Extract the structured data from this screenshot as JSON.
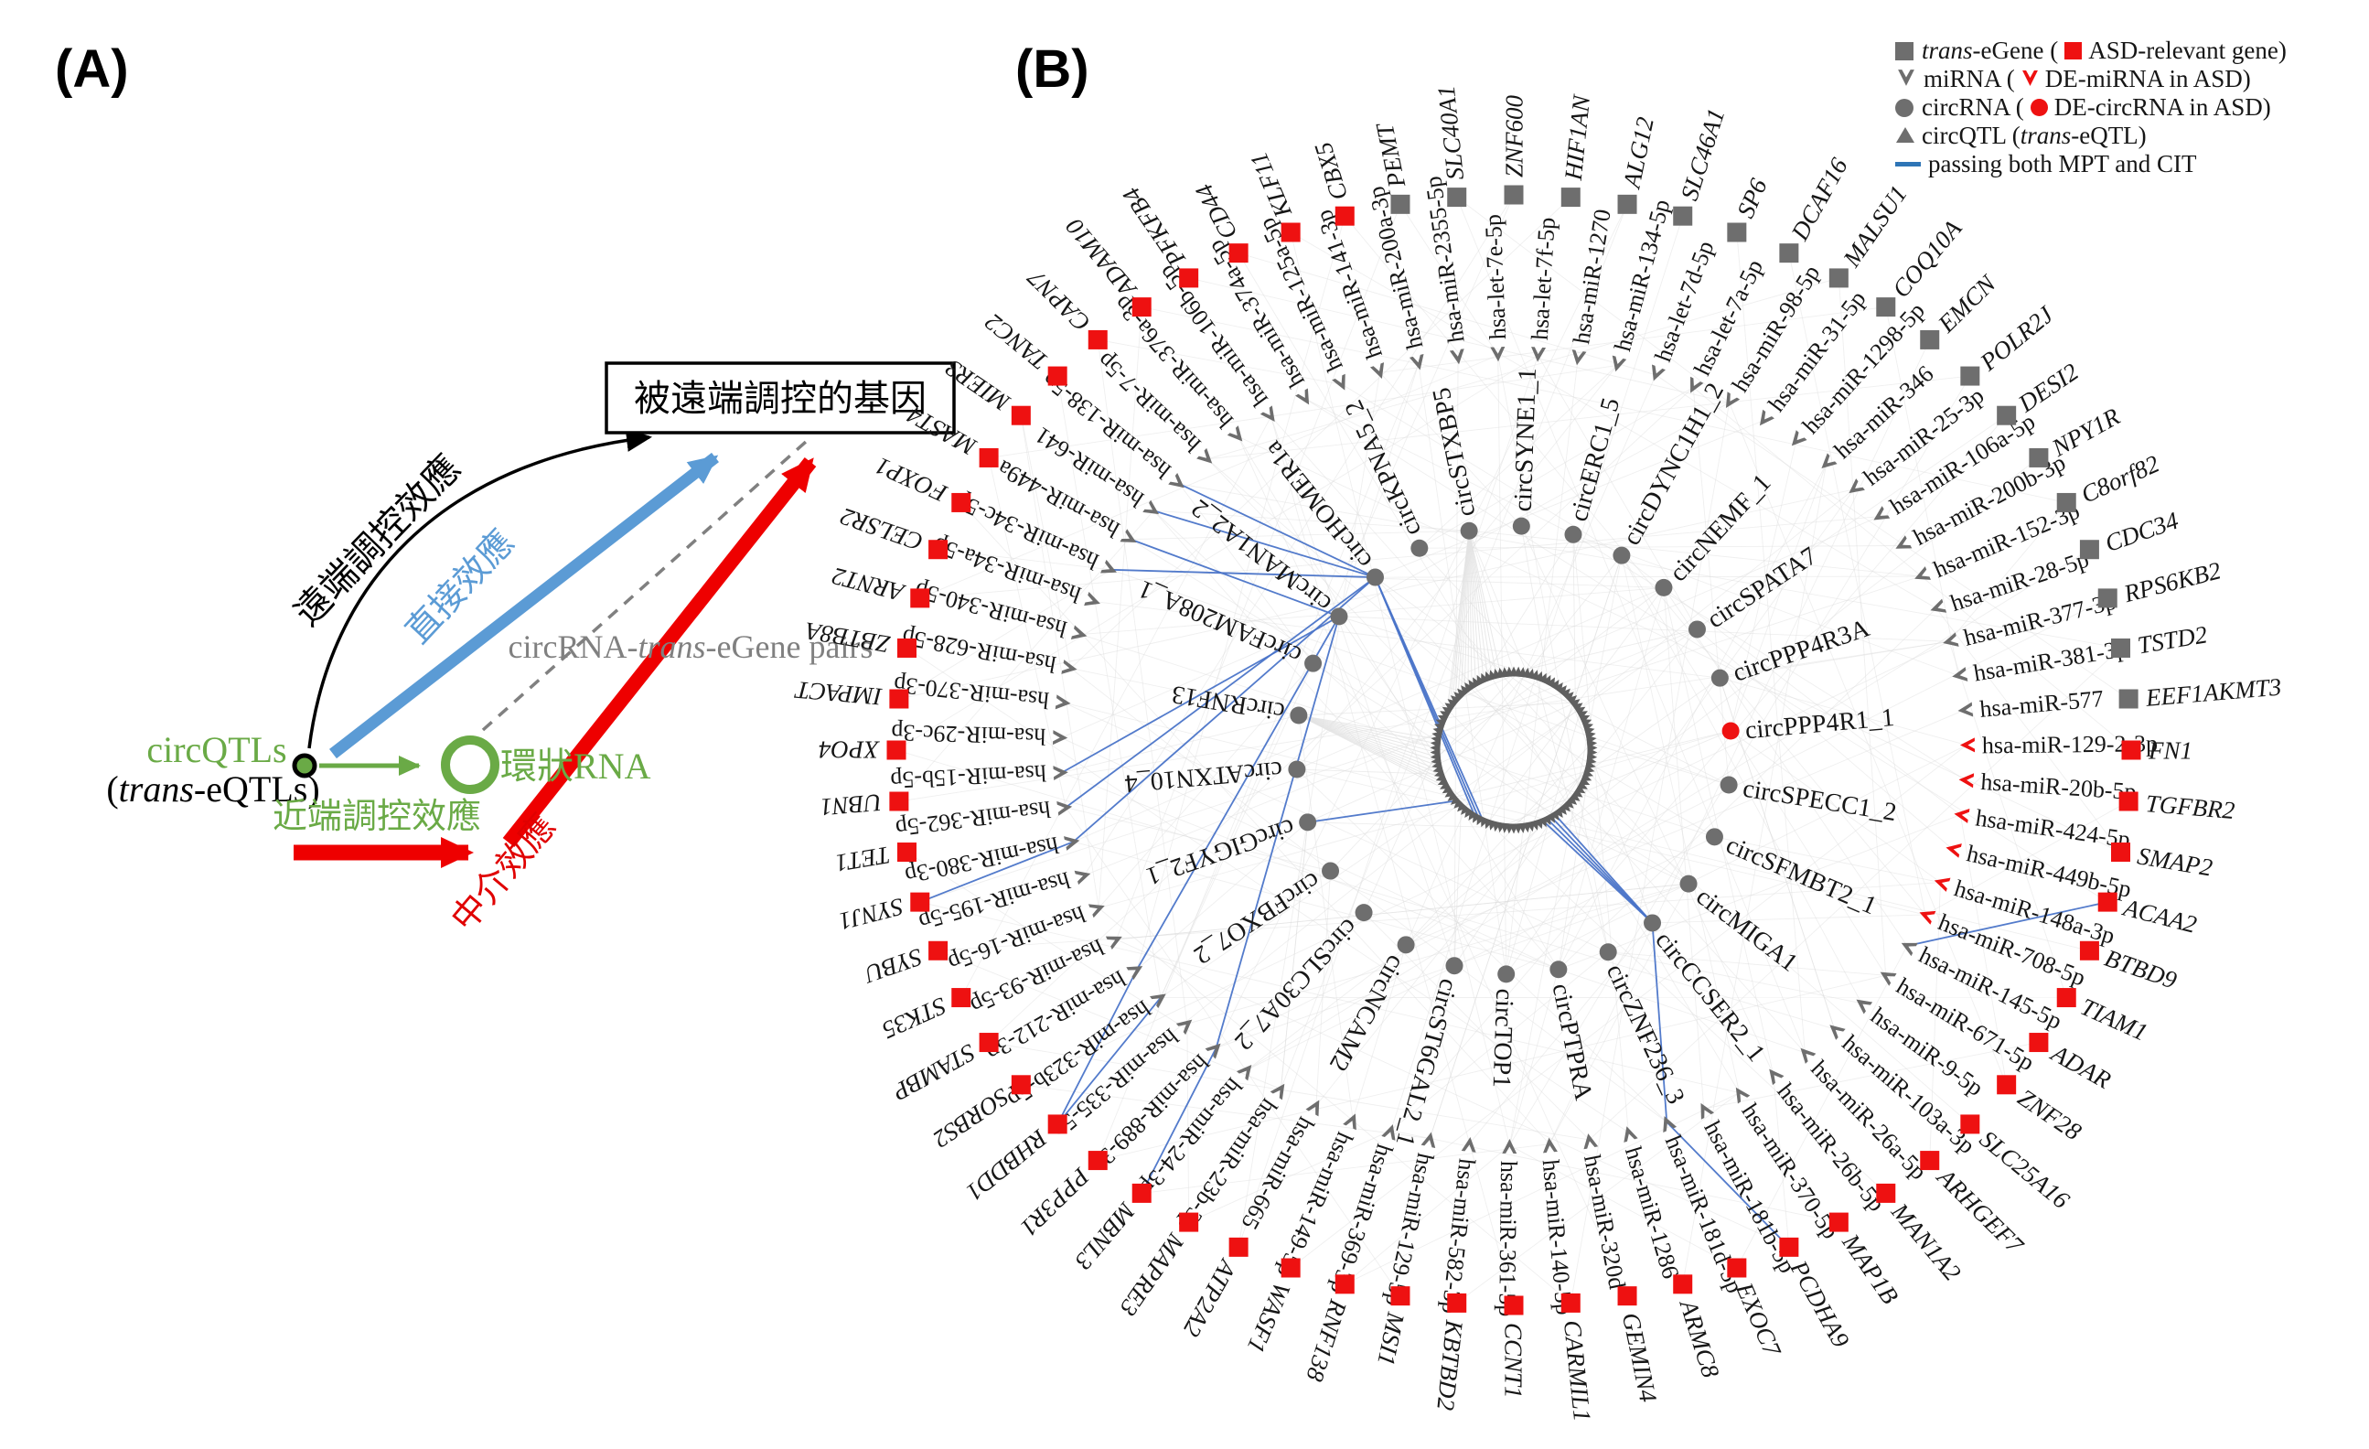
{
  "colors": {
    "green": "#6aaa46",
    "blue": "#5b9bd5",
    "red": "#ee0000",
    "red_text": "#e00000",
    "gray_marker": "#6e6e6e",
    "red_marker": "#ee1111",
    "edge_blue": "#4a74c9",
    "legend_blue": "#2e75b6",
    "gray_line": "#808080",
    "light_edge": "#dcdcdc"
  },
  "panelA": {
    "label": "(A)",
    "box_title": "被遠端調控的基因",
    "labels": {
      "distal": "遠端調控效應",
      "direct": "直接效應",
      "pairs_pre": "circRNA-",
      "pairs_italic": "trans",
      "pairs_post": "-eGene pairs",
      "circqtls": "circQTLs",
      "trans_pre": "(",
      "trans_italic": "trans",
      "trans_post": "-eQTLs)",
      "proximal": "近端調控效應",
      "mediation": "中介效應",
      "circrna": "環狀RNA"
    }
  },
  "panelB": {
    "label": "(B)",
    "legend": {
      "r1": {
        "pre_italic": "trans",
        "pre": "-eGene (",
        "post": "ASD-relevant gene)"
      },
      "r2": {
        "pre": "miRNA (",
        "post": "DE-miRNA in ASD)"
      },
      "r3": {
        "pre": "circRNA (",
        "post": "DE-circRNA in ASD)"
      },
      "r4": {
        "pre": "circQTL (",
        "italic": "trans",
        "post": "-eQTL)"
      },
      "r5": {
        "text": "passing both MPT and CIT"
      }
    },
    "network": {
      "qtl_count": 110,
      "genes": [
        {
          "name": "PEMT",
          "asd": false
        },
        {
          "name": "SLC40A1",
          "asd": false
        },
        {
          "name": "ZNF600",
          "asd": false
        },
        {
          "name": "HIF1AN",
          "asd": false
        },
        {
          "name": "ALG12",
          "asd": false
        },
        {
          "name": "SLC46A1",
          "asd": false
        },
        {
          "name": "SP6",
          "asd": false
        },
        {
          "name": "DCAF16",
          "asd": false
        },
        {
          "name": "MALSU1",
          "asd": false
        },
        {
          "name": "COQ10A",
          "asd": false
        },
        {
          "name": "EMCN",
          "asd": false
        },
        {
          "name": "POLR2J",
          "asd": false
        },
        {
          "name": "DESI2",
          "asd": false
        },
        {
          "name": "NPY1R",
          "asd": false
        },
        {
          "name": "C8orf82",
          "asd": false
        },
        {
          "name": "CDC34",
          "asd": false
        },
        {
          "name": "RPS6KB2",
          "asd": false
        },
        {
          "name": "TSTD2",
          "asd": false
        },
        {
          "name": "EEF1AKMT3",
          "asd": false
        },
        {
          "name": "FN1",
          "asd": true
        },
        {
          "name": "TGFBR2",
          "asd": true
        },
        {
          "name": "SMAP2",
          "asd": true
        },
        {
          "name": "ACAA2",
          "asd": true
        },
        {
          "name": "BTBD9",
          "asd": true
        },
        {
          "name": "TIAM1",
          "asd": true
        },
        {
          "name": "ADAR",
          "asd": true
        },
        {
          "name": "ZNF28",
          "asd": true
        },
        {
          "name": "SLC25A16",
          "asd": true
        },
        {
          "name": "ARHGEF7",
          "asd": true
        },
        {
          "name": "MAN1A2",
          "asd": true
        },
        {
          "name": "MAP1B",
          "asd": true
        },
        {
          "name": "PCDHA9",
          "asd": true
        },
        {
          "name": "EXOC7",
          "asd": true
        },
        {
          "name": "ARMC8",
          "asd": true
        },
        {
          "name": "GEMIN4",
          "asd": true
        },
        {
          "name": "CARMIL1",
          "asd": true
        },
        {
          "name": "CCNT1",
          "asd": true
        },
        {
          "name": "KBTBD2",
          "asd": true
        },
        {
          "name": "MSI1",
          "asd": true
        },
        {
          "name": "RNF138",
          "asd": true
        },
        {
          "name": "WASF1",
          "asd": true
        },
        {
          "name": "ATP2A2",
          "asd": true
        },
        {
          "name": "MAPRE3",
          "asd": true
        },
        {
          "name": "MBNL3",
          "asd": true
        },
        {
          "name": "PPP3R1",
          "asd": true
        },
        {
          "name": "RHBDD1",
          "asd": true
        },
        {
          "name": "SORBS2",
          "asd": true
        },
        {
          "name": "STAMBP",
          "asd": true
        },
        {
          "name": "STK35",
          "asd": true
        },
        {
          "name": "SYBU",
          "asd": true
        },
        {
          "name": "SYNJ1",
          "asd": true
        },
        {
          "name": "TET1",
          "asd": true
        },
        {
          "name": "UBN1",
          "asd": true
        },
        {
          "name": "XPO4",
          "asd": true
        },
        {
          "name": "IMPACT",
          "asd": true
        },
        {
          "name": "ZBTB8A",
          "asd": true
        },
        {
          "name": "ARNT2",
          "asd": true
        },
        {
          "name": "CELSR2",
          "asd": true
        },
        {
          "name": "FOXP1",
          "asd": true
        },
        {
          "name": "MAST4",
          "asd": true
        },
        {
          "name": "MIER3",
          "asd": true
        },
        {
          "name": "TANC2",
          "asd": true
        },
        {
          "name": "CAPN7",
          "asd": true
        },
        {
          "name": "ADAM10",
          "asd": true
        },
        {
          "name": "PFKFB4",
          "asd": true
        },
        {
          "name": "CD44",
          "asd": true
        },
        {
          "name": "KLF11",
          "asd": true
        },
        {
          "name": "CBX5",
          "asd": true
        }
      ],
      "mirnas": [
        {
          "name": "hsa-let-7e-5p",
          "de": false
        },
        {
          "name": "hsa-let-7f-5p",
          "de": false
        },
        {
          "name": "hsa-miR-1270",
          "de": false
        },
        {
          "name": "hsa-miR-134-5p",
          "de": false
        },
        {
          "name": "hsa-let-7d-5p",
          "de": false
        },
        {
          "name": "hsa-let-7a-5p",
          "de": false
        },
        {
          "name": "hsa-miR-98-5p",
          "de": false
        },
        {
          "name": "hsa-miR-31-5p",
          "de": false
        },
        {
          "name": "hsa-miR-1298-5p",
          "de": false
        },
        {
          "name": "hsa-miR-346",
          "de": false
        },
        {
          "name": "hsa-miR-25-3p",
          "de": false
        },
        {
          "name": "hsa-miR-106a-5p",
          "de": false
        },
        {
          "name": "hsa-miR-200b-3p",
          "de": false
        },
        {
          "name": "hsa-miR-152-3p",
          "de": false
        },
        {
          "name": "hsa-miR-28-5p",
          "de": false
        },
        {
          "name": "hsa-miR-377-3p",
          "de": false
        },
        {
          "name": "hsa-miR-381-3p",
          "de": false
        },
        {
          "name": "hsa-miR-577",
          "de": false
        },
        {
          "name": "hsa-miR-129-2-3p",
          "de": true
        },
        {
          "name": "hsa-miR-20b-5p",
          "de": true
        },
        {
          "name": "hsa-miR-424-5p",
          "de": true
        },
        {
          "name": "hsa-miR-449b-5p",
          "de": true
        },
        {
          "name": "hsa-miR-148a-3p",
          "de": true
        },
        {
          "name": "hsa-miR-708-5p",
          "de": true
        },
        {
          "name": "hsa-miR-145-5p",
          "de": false
        },
        {
          "name": "hsa-miR-671-5p",
          "de": false
        },
        {
          "name": "hsa-miR-9-5p",
          "de": false
        },
        {
          "name": "hsa-miR-103a-3p",
          "de": false
        },
        {
          "name": "hsa-miR-26a-5p",
          "de": false
        },
        {
          "name": "hsa-miR-26b-5p",
          "de": false
        },
        {
          "name": "hsa-miR-370-5p",
          "de": false
        },
        {
          "name": "hsa-miR-181b-5p",
          "de": false
        },
        {
          "name": "hsa-miR-181d-5p",
          "de": false
        },
        {
          "name": "hsa-miR-1286",
          "de": false
        },
        {
          "name": "hsa-miR-320d",
          "de": false
        },
        {
          "name": "hsa-miR-140-5p",
          "de": false
        },
        {
          "name": "hsa-miR-361-5p",
          "de": false
        },
        {
          "name": "hsa-miR-582-3p",
          "de": false
        },
        {
          "name": "hsa-miR-129-5p",
          "de": false
        },
        {
          "name": "hsa-miR-369-3p",
          "de": false
        },
        {
          "name": "hsa-miR-149-5p",
          "de": false
        },
        {
          "name": "hsa-miR-665",
          "de": false
        },
        {
          "name": "hsa-miR-23b-3p",
          "de": false
        },
        {
          "name": "hsa-miR-24-3p",
          "de": false
        },
        {
          "name": "hsa-miR-889-3p",
          "de": false
        },
        {
          "name": "hsa-miR-335-5p",
          "de": false
        },
        {
          "name": "hsa-miR-323b-5p",
          "de": false
        },
        {
          "name": "hsa-miR-212-3p",
          "de": false
        },
        {
          "name": "hsa-miR-93-5p",
          "de": false
        },
        {
          "name": "hsa-miR-16-5p",
          "de": false
        },
        {
          "name": "hsa-miR-195-5p",
          "de": false
        },
        {
          "name": "hsa-miR-380-3p",
          "de": false
        },
        {
          "name": "hsa-miR-362-5p",
          "de": false
        },
        {
          "name": "hsa-miR-15b-5p",
          "de": false
        },
        {
          "name": "hsa-miR-29c-3p",
          "de": false
        },
        {
          "name": "hsa-miR-370-3p",
          "de": false
        },
        {
          "name": "hsa-miR-628-5p",
          "de": false
        },
        {
          "name": "hsa-miR-340-5p",
          "de": false
        },
        {
          "name": "hsa-miR-34a-5p",
          "de": false
        },
        {
          "name": "hsa-miR-34c-5p",
          "de": false
        },
        {
          "name": "hsa-miR-449a",
          "de": false
        },
        {
          "name": "hsa-miR-641",
          "de": false
        },
        {
          "name": "hsa-miR-138-5p",
          "de": false
        },
        {
          "name": "hsa-miR-7-5p",
          "de": false
        },
        {
          "name": "hsa-miR-376a-3p",
          "de": false
        },
        {
          "name": "hsa-miR-106b-5p",
          "de": false
        },
        {
          "name": "hsa-miR-374a-5p",
          "de": false
        },
        {
          "name": "hsa-miR-125a-5p",
          "de": false
        },
        {
          "name": "hsa-miR-141-3p",
          "de": false
        },
        {
          "name": "hsa-miR-200a-3p",
          "de": false
        },
        {
          "name": "hsa-miR-2355-5p",
          "de": false
        }
      ],
      "circrnas": [
        {
          "name": "circSYNE1_1",
          "de": false
        },
        {
          "name": "circERC1_5",
          "de": false
        },
        {
          "name": "circDYNC1H1_2",
          "de": false
        },
        {
          "name": "circNEMF_1",
          "de": false
        },
        {
          "name": "circSPATA7",
          "de": false
        },
        {
          "name": "circPPP4R3A",
          "de": false
        },
        {
          "name": "circPPP4R1_1",
          "de": true
        },
        {
          "name": "circSPECC1_2",
          "de": false
        },
        {
          "name": "circSFMBT2_1",
          "de": false
        },
        {
          "name": "circMIGA1",
          "de": false
        },
        {
          "name": "circCCSER2_1",
          "de": false
        },
        {
          "name": "circZNF236_3",
          "de": false
        },
        {
          "name": "circPTPRA",
          "de": false
        },
        {
          "name": "circTOP1",
          "de": false
        },
        {
          "name": "circST6GAL2_1",
          "de": false
        },
        {
          "name": "circNCAM2",
          "de": false
        },
        {
          "name": "circSLC30A7_2",
          "de": false
        },
        {
          "name": "circFBXO7_2",
          "de": false
        },
        {
          "name": "circGIGYF2_1",
          "de": false
        },
        {
          "name": "circATXN10_4",
          "de": false
        },
        {
          "name": "circRNF13",
          "de": false
        },
        {
          "name": "circFAM208A_1",
          "de": false
        },
        {
          "name": "circMAN1A2_2",
          "de": false
        },
        {
          "name": "circHOMER1a",
          "de": false
        },
        {
          "name": "circKPNA5_2",
          "de": false
        },
        {
          "name": "circSTXBP5",
          "de": false
        }
      ],
      "blue_edges": [
        [
          "q:62",
          "c:circHOMER1a"
        ],
        [
          "q:63",
          "c:circHOMER1a"
        ],
        [
          "q:64",
          "c:circHOMER1a"
        ],
        [
          "q:45",
          "c:circCCSER2_1"
        ],
        [
          "q:46",
          "c:circCCSER2_1"
        ],
        [
          "q:47",
          "c:circCCSER2_1"
        ],
        [
          "q:48",
          "c:circCCSER2_1"
        ],
        [
          "q:70",
          "c:circGIGYF2_1"
        ],
        [
          "c:circHOMER1a",
          "m:hsa-miR-641"
        ],
        [
          "c:circHOMER1a",
          "m:hsa-miR-138-5p"
        ],
        [
          "c:circHOMER1a",
          "m:hsa-miR-34c-5p"
        ],
        [
          "c:circHOMER1a",
          "m:hsa-miR-380-3p"
        ],
        [
          "c:circHOMER1a",
          "m:hsa-miR-362-5p"
        ],
        [
          "c:circMAN1A2_2",
          "m:hsa-miR-449a"
        ],
        [
          "c:circMAN1A2_2",
          "m:hsa-miR-15b-5p"
        ],
        [
          "c:circMAN1A2_2",
          "m:hsa-miR-212-3p"
        ],
        [
          "c:circMAN1A2_2",
          "m:hsa-miR-889-3p"
        ],
        [
          "m:hsa-miR-380-3p",
          "g:SYNJ1"
        ],
        [
          "m:hsa-miR-212-3p",
          "g:RHBDD1"
        ],
        [
          "m:hsa-miR-323b-5p",
          "g:RHBDD1"
        ],
        [
          "m:hsa-miR-889-3p",
          "g:MBNL3"
        ],
        [
          "c:circCCSER2_1",
          "m:hsa-miR-181d-5p"
        ],
        [
          "m:hsa-miR-181d-5p",
          "g:PCDHA9"
        ],
        [
          "m:hsa-miR-145-5p",
          "g:ACAA2"
        ]
      ]
    }
  }
}
